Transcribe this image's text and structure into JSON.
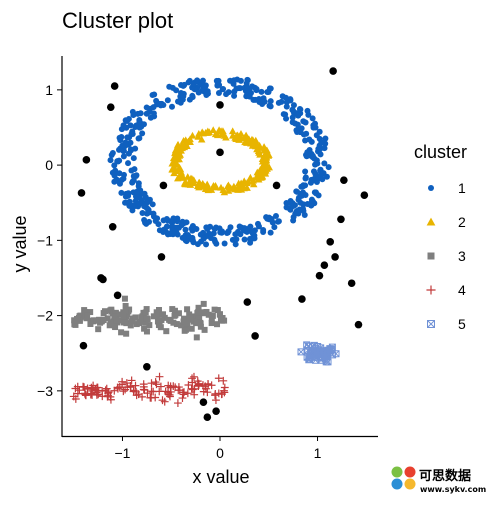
{
  "chart_data": {
    "type": "scatter",
    "title": "Cluster plot",
    "xlabel": "x value",
    "ylabel": "y value",
    "xlim": [
      -1.62,
      1.62
    ],
    "ylim": [
      -3.6,
      1.45
    ],
    "xticks": [
      -1,
      0,
      1
    ],
    "yticks": [
      1,
      0,
      -1,
      -2,
      -3
    ],
    "grid": false,
    "legend": {
      "title": "cluster",
      "position": "right",
      "entries": [
        {
          "label": "1",
          "color": "#0F60BF",
          "marker": "circle"
        },
        {
          "label": "2",
          "color": "#E8B400",
          "marker": "triangle"
        },
        {
          "label": "3",
          "color": "#7F7F7F",
          "marker": "square"
        },
        {
          "label": "4",
          "color": "#C23B3B",
          "marker": "plus"
        },
        {
          "label": "5",
          "color": "#7092D6",
          "marker": "boxed-x"
        }
      ]
    },
    "noise_color": "#000000",
    "series": [
      {
        "cluster": "1",
        "shape": "ring",
        "center": [
          0,
          0.05
        ],
        "radius_x": 1.0,
        "radius_y": 1.0,
        "thickness": 0.25,
        "count": 480
      },
      {
        "cluster": "2",
        "shape": "ring",
        "center": [
          0,
          0.05
        ],
        "radius_x": 0.47,
        "radius_y": 0.37,
        "thickness": 0.1,
        "count": 220
      },
      {
        "cluster": "3",
        "shape": "band",
        "x_range": [
          -1.5,
          0.05
        ],
        "y_center": -2.05,
        "y_spread": 0.12,
        "count": 160
      },
      {
        "cluster": "4",
        "shape": "band",
        "x_range": [
          -1.5,
          0.05
        ],
        "y_center": -3.0,
        "y_spread": 0.1,
        "count": 130
      },
      {
        "cluster": "5",
        "shape": "blob",
        "center": [
          1.0,
          -2.5
        ],
        "spread": [
          0.17,
          0.1
        ],
        "count": 70
      }
    ],
    "noise_points": [
      [
        -1.08,
        1.05
      ],
      [
        -1.12,
        0.77
      ],
      [
        -1.37,
        0.07
      ],
      [
        -1.42,
        -0.37
      ],
      [
        -1.1,
        -0.82
      ],
      [
        -0.58,
        -0.27
      ],
      [
        -0.6,
        -1.22
      ],
      [
        0.0,
        0.8
      ],
      [
        0.0,
        0.17
      ],
      [
        0.58,
        -0.27
      ],
      [
        1.16,
        1.25
      ],
      [
        1.27,
        -0.2
      ],
      [
        1.48,
        -0.4
      ],
      [
        1.24,
        -0.72
      ],
      [
        1.13,
        -1.02
      ],
      [
        1.18,
        -1.22
      ],
      [
        1.07,
        -1.33
      ],
      [
        1.02,
        -1.47
      ],
      [
        0.84,
        -1.78
      ],
      [
        1.35,
        -1.57
      ],
      [
        1.42,
        -2.12
      ],
      [
        0.28,
        -1.82
      ],
      [
        0.36,
        -2.27
      ],
      [
        -1.22,
        -1.5
      ],
      [
        -1.2,
        -1.52
      ],
      [
        -1.05,
        -1.73
      ],
      [
        -1.4,
        -2.4
      ],
      [
        -0.75,
        -2.68
      ],
      [
        -0.17,
        -3.15
      ],
      [
        -0.13,
        -3.35
      ],
      [
        -0.04,
        -3.27
      ]
    ]
  }
}
